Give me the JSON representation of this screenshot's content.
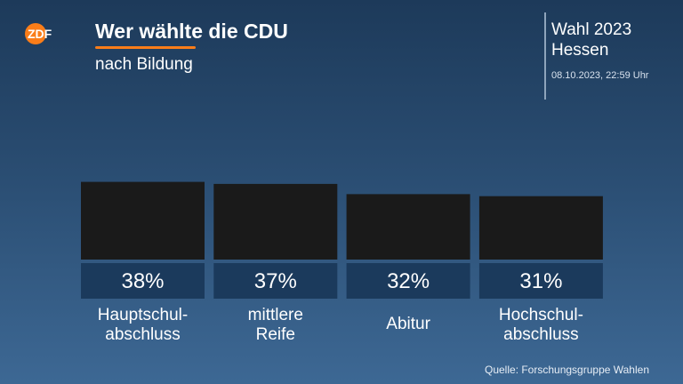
{
  "header": {
    "logo_text": "ZDF",
    "title": "Wer wählte die CDU",
    "subtitle": "nach Bildung",
    "election_line1": "Wahl 2023",
    "election_line2": "Hessen",
    "timestamp": "08.10.2023, 22:59 Uhr"
  },
  "footer": {
    "source": "Quelle: Forschungsgruppe Wahlen"
  },
  "colors": {
    "bar": "#1a1a1a",
    "value_box": "#1b3a5c",
    "accent": "#fa7d19"
  },
  "chart_data": {
    "type": "bar",
    "title": "Wer wählte die CDU",
    "subtitle": "nach Bildung",
    "categories": [
      [
        "Hauptschul-",
        "abschluss"
      ],
      [
        "mittlere",
        "Reife"
      ],
      [
        "Abitur"
      ],
      [
        "Hochschul-",
        "abschluss"
      ]
    ],
    "values": [
      38,
      37,
      32,
      31
    ],
    "value_labels": [
      "38%",
      "37%",
      "32%",
      "31%"
    ],
    "unit": "%",
    "ylim": [
      0,
      100
    ],
    "grid": false,
    "legend": "none"
  }
}
